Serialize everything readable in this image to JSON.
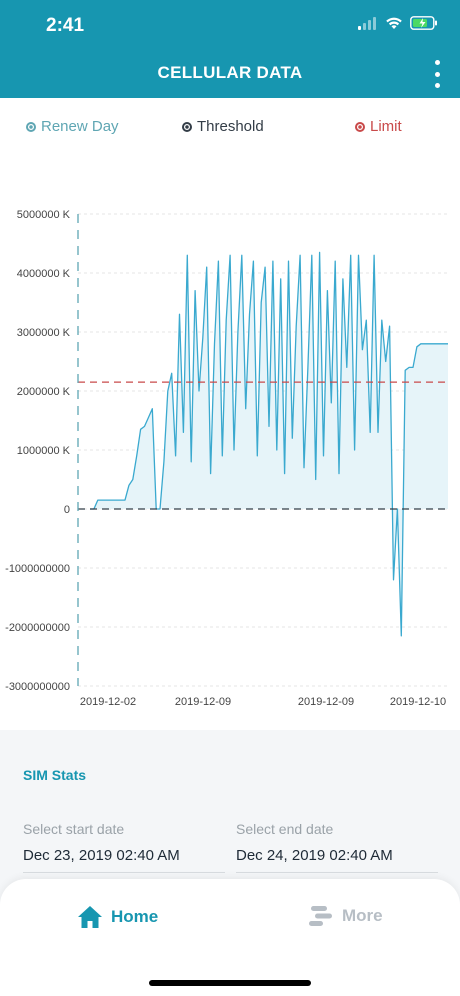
{
  "status": {
    "time": "2:41"
  },
  "header": {
    "title": "CELLULAR DATA",
    "menu_icon": "kebab-menu-icon"
  },
  "legend": [
    {
      "label": "Renew Day",
      "color": "#5fa6b3"
    },
    {
      "label": "Threshold",
      "color": "#333d47"
    },
    {
      "label": "Limit",
      "color": "#c94a4a"
    }
  ],
  "chart_data": {
    "type": "line",
    "y_tick_labels": [
      "5000000 K",
      "4000000 K",
      "3000000 K",
      "2000000 K",
      "1000000 K",
      "0",
      "-1000000000",
      "-2000000000",
      "-3000000000"
    ],
    "y_tick_values": [
      5000000,
      4000000,
      3000000,
      2000000,
      1000000,
      0,
      -1000000,
      -2000000,
      -3000000
    ],
    "ylim": [
      -3000000,
      5000000
    ],
    "x_tick_labels": [
      "2019-12-02",
      "2019-12-09",
      "2019-12-09",
      "2019-12-10"
    ],
    "limit_value": 2150000,
    "threshold_value": 0,
    "renew_day_index": 0,
    "series_color": "#3aa9cf",
    "fill_color": "#e6f4f9",
    "values": [
      0,
      0,
      150000,
      150000,
      150000,
      150000,
      150000,
      150000,
      150000,
      150000,
      400000,
      500000,
      900000,
      1350000,
      1400000,
      1550000,
      1700000,
      0,
      0,
      800000,
      2000000,
      2300000,
      900000,
      3300000,
      1300000,
      4300000,
      800000,
      3700000,
      2000000,
      2900000,
      4100000,
      600000,
      2800000,
      4200000,
      900000,
      3200000,
      4300000,
      1000000,
      3000000,
      4300000,
      1700000,
      3300000,
      4200000,
      900000,
      3500000,
      4100000,
      1400000,
      4200000,
      1000000,
      3900000,
      600000,
      4200000,
      1200000,
      3100000,
      4300000,
      700000,
      2400000,
      4300000,
      500000,
      4350000,
      900000,
      3700000,
      1800000,
      4200000,
      600000,
      3900000,
      2400000,
      4300000,
      1000000,
      4300000,
      2700000,
      3200000,
      1300000,
      4300000,
      1300000,
      3200000,
      2500000,
      3100000,
      -1200000,
      0,
      -2150000,
      2350000,
      2400000,
      2400000,
      2750000,
      2800000,
      2800000,
      2800000,
      2800000,
      2800000,
      2800000,
      2800000,
      2800000
    ]
  },
  "sim_stats": {
    "title": "SIM Stats",
    "start_label": "Select start date",
    "start_value": "Dec 23, 2019 02:40 AM",
    "end_label": "Select end date",
    "end_value": "Dec 24, 2019 02:40 AM"
  },
  "tabs": [
    {
      "label": "Home",
      "icon": "home-icon",
      "active": true
    },
    {
      "label": "More",
      "icon": "more-icon",
      "active": false
    }
  ]
}
